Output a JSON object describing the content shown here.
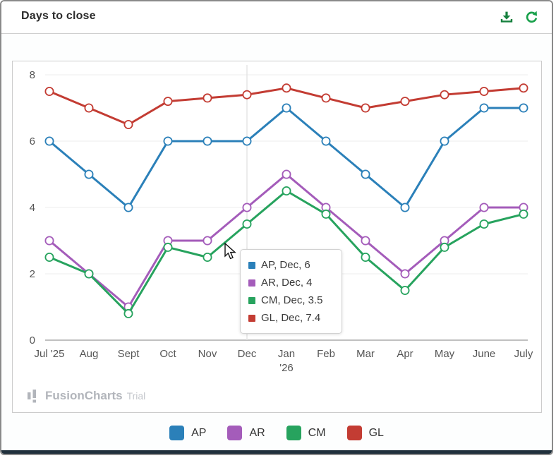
{
  "window": {
    "title": "Days to close"
  },
  "header": {
    "icons": [
      {
        "name": "download-icon",
        "color": "#15803d"
      },
      {
        "name": "refresh-icon",
        "color": "#18a04b"
      }
    ]
  },
  "chart_data": {
    "type": "line",
    "title": "Days to close",
    "categories": [
      "Jul '25",
      "Aug",
      "Sept",
      "Oct",
      "Nov",
      "Dec",
      "Jan\n'26",
      "Feb",
      "Mar",
      "Apr",
      "May",
      "June",
      "July"
    ],
    "series": [
      {
        "name": "AP",
        "color": "#2b80b9",
        "values": [
          6,
          5,
          4,
          6,
          6,
          6,
          7,
          6,
          5,
          4,
          6,
          7,
          7
        ]
      },
      {
        "name": "AR",
        "color": "#a45cba",
        "values": [
          3,
          2,
          1,
          3,
          3,
          4,
          5,
          4,
          3,
          2,
          3,
          4,
          4
        ]
      },
      {
        "name": "CM",
        "color": "#27a35e",
        "values": [
          2.5,
          2,
          0.8,
          2.8,
          2.5,
          3.5,
          4.5,
          3.8,
          2.5,
          1.5,
          2.8,
          3.5,
          3.8
        ]
      },
      {
        "name": "GL",
        "color": "#c33c33",
        "values": [
          7.5,
          7,
          6.5,
          7.2,
          7.3,
          7.4,
          7.6,
          7.3,
          7,
          7.2,
          7.4,
          7.5,
          7.6
        ]
      }
    ],
    "xlabel": "",
    "ylabel": "",
    "ylim": [
      0,
      8
    ],
    "yticks": [
      0,
      2,
      4,
      6,
      8
    ],
    "grid": true,
    "legend_position": "bottom",
    "hover_category": "Dec",
    "hover_category_index": 5
  },
  "tooltip": {
    "rows": [
      {
        "series": "AP",
        "text": "AP, Dec, 6",
        "color": "#2b80b9"
      },
      {
        "series": "AR",
        "text": "AR, Dec, 4",
        "color": "#a45cba"
      },
      {
        "series": "CM",
        "text": "CM, Dec, 3.5",
        "color": "#27a35e"
      },
      {
        "series": "GL",
        "text": "GL, Dec, 7.4",
        "color": "#c33c33"
      }
    ]
  },
  "legend": {
    "items": [
      {
        "label": "AP",
        "color": "#2b80b9"
      },
      {
        "label": "AR",
        "color": "#a45cba"
      },
      {
        "label": "CM",
        "color": "#27a35e"
      },
      {
        "label": "GL",
        "color": "#c33c33"
      }
    ]
  },
  "watermark": {
    "brand": "FusionCharts",
    "suffix": "Trial"
  }
}
